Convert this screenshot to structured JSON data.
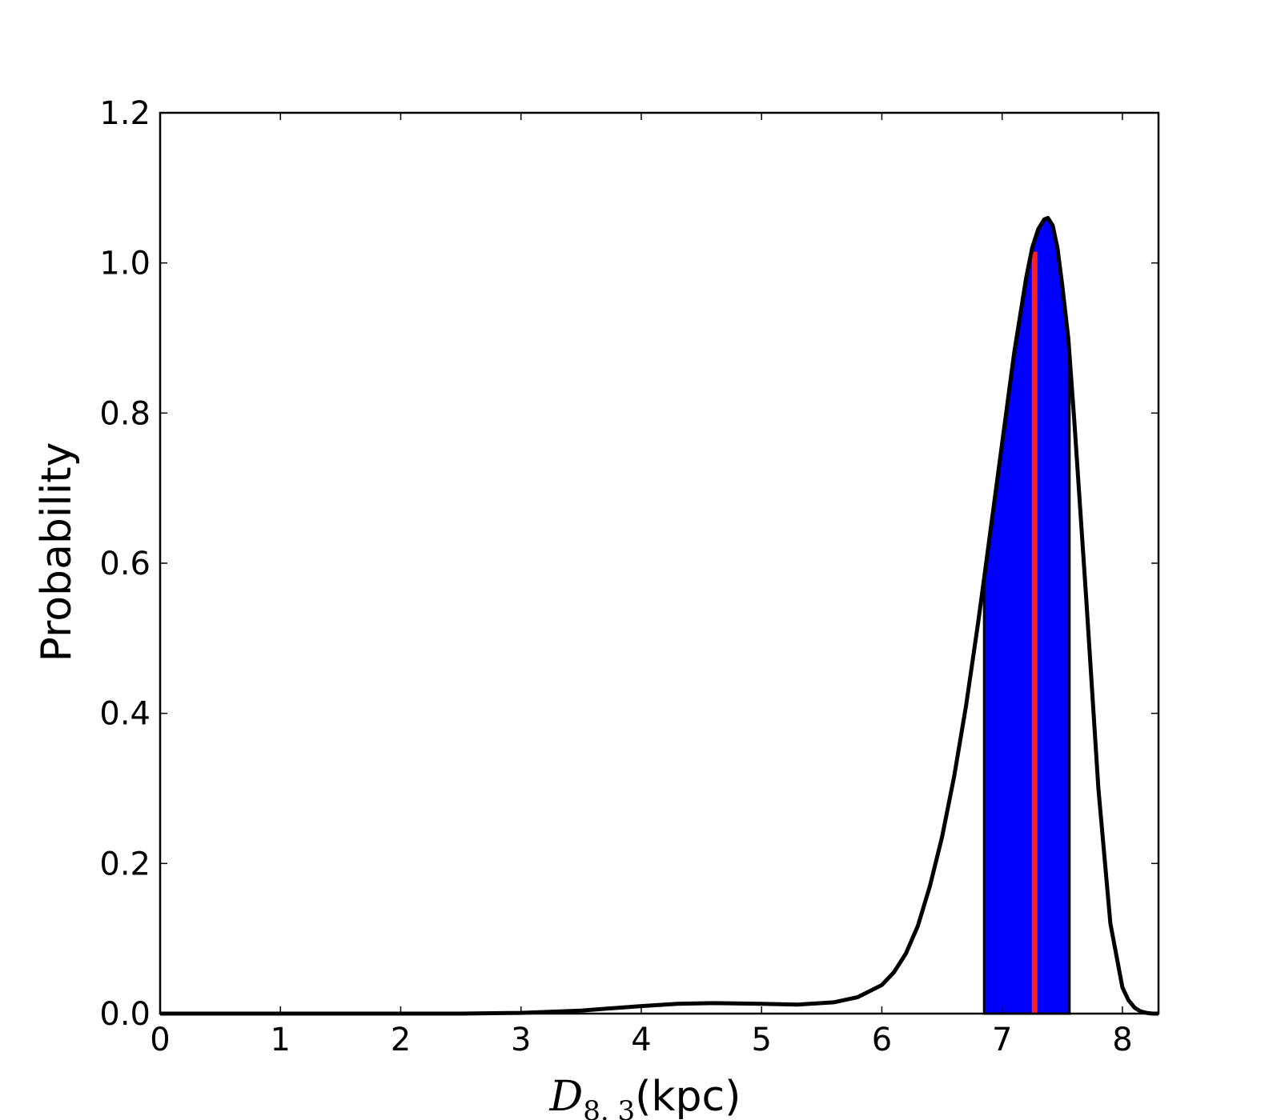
{
  "chart_data": {
    "type": "area",
    "title": "",
    "xlabel": {
      "symbol": "D",
      "subscript": "8. 3",
      "unit": "(kpc)"
    },
    "ylabel": "Probability",
    "xlim": [
      0,
      8.3
    ],
    "ylim": [
      0,
      1.2
    ],
    "xticks": [
      "0",
      "1",
      "2",
      "3",
      "4",
      "5",
      "6",
      "7",
      "8"
    ],
    "yticks": [
      "0.0",
      "0.2",
      "0.4",
      "0.6",
      "0.8",
      "1.0",
      "1.2"
    ],
    "grid": false,
    "legend": "none",
    "curve_color": "#000000",
    "fill_color": "#0000ff",
    "marker_color": "#ff2020",
    "series": [
      {
        "x": [
          0,
          2.5,
          3.0,
          3.5,
          4.0,
          4.3,
          4.6,
          5.0,
          5.3,
          5.6,
          5.8,
          6.0,
          6.1,
          6.2,
          6.3,
          6.4,
          6.5,
          6.6,
          6.7,
          6.8,
          6.85,
          6.9,
          7.0,
          7.1,
          7.2,
          7.25,
          7.3,
          7.35,
          7.38,
          7.42,
          7.46,
          7.5,
          7.55,
          7.6,
          7.7,
          7.8,
          7.9,
          8.0,
          8.05,
          8.1,
          8.15,
          8.2,
          8.25,
          8.3
        ],
        "y": [
          0.0,
          0.0,
          0.001,
          0.004,
          0.01,
          0.013,
          0.014,
          0.013,
          0.012,
          0.015,
          0.022,
          0.038,
          0.055,
          0.08,
          0.117,
          0.17,
          0.235,
          0.315,
          0.41,
          0.52,
          0.58,
          0.64,
          0.76,
          0.88,
          0.98,
          1.02,
          1.045,
          1.058,
          1.06,
          1.05,
          1.02,
          0.97,
          0.9,
          0.79,
          0.55,
          0.3,
          0.12,
          0.035,
          0.018,
          0.008,
          0.003,
          0.001,
          0.0,
          0.0
        ]
      }
    ],
    "shaded_interval": [
      6.85,
      7.56
    ],
    "marker_x": 7.27,
    "marker_y": 1.015
  }
}
